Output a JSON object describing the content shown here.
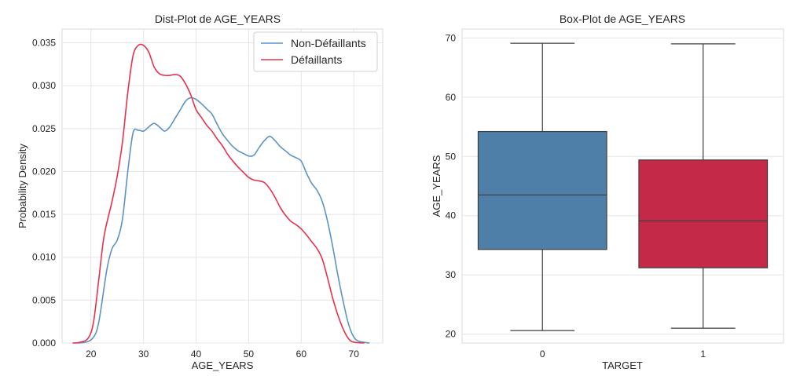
{
  "chart_data": [
    {
      "type": "line",
      "title": "Dist-Plot de AGE_YEARS",
      "xlabel": "AGE_YEARS",
      "ylabel": "Probability Density",
      "xlim": [
        14.5,
        75.5
      ],
      "ylim": [
        0,
        0.0366
      ],
      "x_ticks": [
        20,
        30,
        40,
        50,
        60,
        70
      ],
      "x_tick_labels": [
        "20",
        "30",
        "40",
        "50",
        "60",
        "70"
      ],
      "y_ticks": [
        0,
        0.005,
        0.01,
        0.015,
        0.02,
        0.025,
        0.03,
        0.035
      ],
      "y_tick_labels": [
        "0.000",
        "0.005",
        "0.010",
        "0.015",
        "0.020",
        "0.025",
        "0.030",
        "0.035"
      ],
      "grid": true,
      "legend_position": "top-right",
      "series": [
        {
          "name": "Non-Défaillants",
          "color": "#5b94c4",
          "points": [
            [
              17,
              0
            ],
            [
              19,
              0.0001
            ],
            [
              20.5,
              0.0007
            ],
            [
              21.5,
              0.0025
            ],
            [
              23,
              0.0085
            ],
            [
              24,
              0.011
            ],
            [
              25,
              0.012
            ],
            [
              26,
              0.0145
            ],
            [
              27,
              0.02
            ],
            [
              28,
              0.0245
            ],
            [
              29,
              0.0248
            ],
            [
              30,
              0.0247
            ],
            [
              31,
              0.0252
            ],
            [
              32,
              0.0256
            ],
            [
              33,
              0.0252
            ],
            [
              34,
              0.0247
            ],
            [
              35,
              0.0252
            ],
            [
              36,
              0.0262
            ],
            [
              37,
              0.0272
            ],
            [
              38,
              0.0282
            ],
            [
              39,
              0.0286
            ],
            [
              40,
              0.0284
            ],
            [
              41,
              0.0279
            ],
            [
              42,
              0.0273
            ],
            [
              43,
              0.0267
            ],
            [
              44,
              0.0255
            ],
            [
              45,
              0.0244
            ],
            [
              46,
              0.0236
            ],
            [
              47,
              0.0229
            ],
            [
              48,
              0.0224
            ],
            [
              49,
              0.0221
            ],
            [
              50,
              0.0218
            ],
            [
              51,
              0.0219
            ],
            [
              52,
              0.0228
            ],
            [
              53,
              0.0236
            ],
            [
              54,
              0.0241
            ],
            [
              55,
              0.0236
            ],
            [
              56,
              0.0229
            ],
            [
              57,
              0.0224
            ],
            [
              58,
              0.0219
            ],
            [
              59,
              0.0216
            ],
            [
              60,
              0.0212
            ],
            [
              61,
              0.0198
            ],
            [
              62,
              0.0186
            ],
            [
              63,
              0.0178
            ],
            [
              64,
              0.0165
            ],
            [
              65,
              0.0142
            ],
            [
              66,
              0.0112
            ],
            [
              67,
              0.0078
            ],
            [
              68,
              0.0048
            ],
            [
              69,
              0.0022
            ],
            [
              70,
              0.0007
            ],
            [
              71,
              0.0002
            ],
            [
              73,
              0
            ]
          ]
        },
        {
          "name": "Défaillants",
          "color": "#e8304e",
          "points": [
            [
              16.5,
              0
            ],
            [
              18,
              0.0001
            ],
            [
              19.5,
              0.0006
            ],
            [
              20.5,
              0.0025
            ],
            [
              21.5,
              0.0075
            ],
            [
              22.5,
              0.0125
            ],
            [
              24,
              0.0165
            ],
            [
              25,
              0.0195
            ],
            [
              26,
              0.0235
            ],
            [
              27,
              0.0292
            ],
            [
              28,
              0.0335
            ],
            [
              29,
              0.0347
            ],
            [
              30,
              0.0347
            ],
            [
              31,
              0.0339
            ],
            [
              32,
              0.0322
            ],
            [
              33,
              0.0314
            ],
            [
              34,
              0.0312
            ],
            [
              35,
              0.0312
            ],
            [
              36,
              0.0313
            ],
            [
              37,
              0.0311
            ],
            [
              38,
              0.0302
            ],
            [
              39,
              0.0289
            ],
            [
              40,
              0.0272
            ],
            [
              41,
              0.0263
            ],
            [
              42,
              0.0254
            ],
            [
              43,
              0.0247
            ],
            [
              44,
              0.0238
            ],
            [
              45,
              0.023
            ],
            [
              46,
              0.022
            ],
            [
              47,
              0.0212
            ],
            [
              48,
              0.0205
            ],
            [
              49,
              0.0199
            ],
            [
              50,
              0.0193
            ],
            [
              51,
              0.019
            ],
            [
              52,
              0.0189
            ],
            [
              53,
              0.0187
            ],
            [
              54,
              0.018
            ],
            [
              55,
              0.017
            ],
            [
              56,
              0.0158
            ],
            [
              57,
              0.0149
            ],
            [
              58,
              0.0142
            ],
            [
              59,
              0.0138
            ],
            [
              60,
              0.0133
            ],
            [
              61,
              0.0126
            ],
            [
              62,
              0.0118
            ],
            [
              63,
              0.011
            ],
            [
              64,
              0.0098
            ],
            [
              65,
              0.0076
            ],
            [
              66,
              0.0052
            ],
            [
              67,
              0.0032
            ],
            [
              68,
              0.0016
            ],
            [
              69,
              0.0005
            ],
            [
              70,
              0.0001
            ],
            [
              72,
              0
            ]
          ]
        }
      ]
    },
    {
      "type": "box",
      "title": "Box-Plot de AGE_YEARS",
      "xlabel": "TARGET",
      "ylabel": "AGE_YEARS",
      "ylim": [
        18.5,
        71.5
      ],
      "y_ticks": [
        20,
        30,
        40,
        50,
        60,
        70
      ],
      "y_tick_labels": [
        "20",
        "30",
        "40",
        "50",
        "60",
        "70"
      ],
      "categories": [
        "0",
        "1"
      ],
      "grid": true,
      "boxes": [
        {
          "category": "0",
          "color": "#4e7fa8",
          "whisker_low": 20.6,
          "q1": 34.3,
          "median": 43.5,
          "q3": 54.2,
          "whisker_high": 69.1
        },
        {
          "category": "1",
          "color": "#c42a47",
          "whisker_low": 21.0,
          "q1": 31.2,
          "median": 39.1,
          "q3": 49.4,
          "whisker_high": 69.0
        }
      ]
    }
  ]
}
